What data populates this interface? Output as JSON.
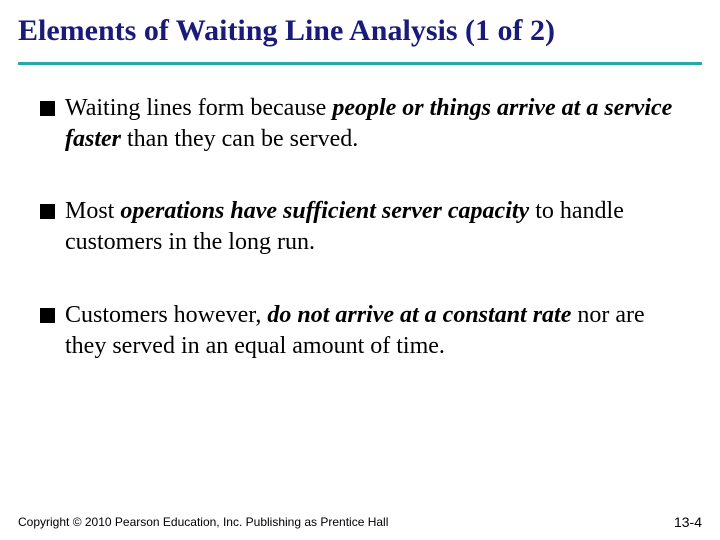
{
  "title": "Elements of Waiting Line Analysis (1 of 2)",
  "colors": {
    "title_text": "#1a1a7a",
    "underline": "#2aa8a8",
    "body_text": "#000000",
    "bullet_square": "#000000",
    "background": "#ffffff"
  },
  "typography": {
    "title_font": "Times New Roman",
    "title_size_pt": 30,
    "title_weight": "bold",
    "body_font": "Times New Roman",
    "body_size_pt": 24,
    "footer_font": "Arial",
    "footer_size_pt": 12
  },
  "bullets": [
    {
      "pre": "Waiting lines form because ",
      "em": "people or things arrive at a service faster",
      "post": " than they can be served."
    },
    {
      "pre": "Most ",
      "em": "operations have sufficient server capacity",
      "post": " to handle customers in the long run."
    },
    {
      "pre": "Customers however, ",
      "em": "do not arrive at a constant rate",
      "post": " nor are they served in an equal amount of time."
    }
  ],
  "footer": {
    "copyright": "Copyright © 2010 Pearson Education, Inc. Publishing as Prentice Hall",
    "slide_number": "13-4"
  }
}
